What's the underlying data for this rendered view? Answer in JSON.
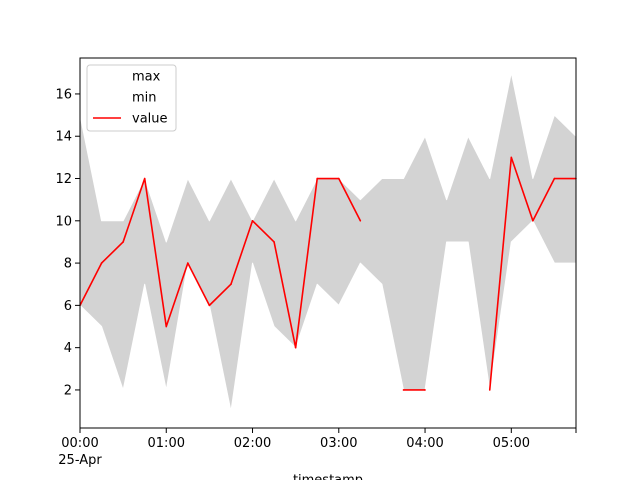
{
  "chart_data": {
    "type": "area",
    "xlabel": "timestamp",
    "ylabel": "",
    "x_ticks": [
      "00:00",
      "01:00",
      "02:00",
      "03:00",
      "04:00",
      "05:00",
      ""
    ],
    "x_tick_sublabel": "25-Apr",
    "y_ticks": [
      "2",
      "4",
      "6",
      "8",
      "10",
      "12",
      "14",
      "16"
    ],
    "ylim": [
      0.2,
      17.7
    ],
    "xlim": [
      "00:00",
      "05:45"
    ],
    "grid": false,
    "legend_position": "top-left",
    "x": [
      "00:00",
      "00:15",
      "00:30",
      "00:45",
      "01:00",
      "01:15",
      "01:30",
      "01:45",
      "02:00",
      "02:15",
      "02:30",
      "02:45",
      "03:00",
      "03:15",
      "03:30",
      "03:45",
      "04:00",
      "04:15",
      "04:30",
      "04:45",
      "05:00",
      "05:15",
      "05:30",
      "05:45"
    ],
    "series": [
      {
        "name": "max",
        "color": "#ffffff",
        "values": [
          15,
          10,
          10,
          12,
          9,
          12,
          10,
          12,
          10,
          12,
          10,
          12,
          12,
          11,
          12,
          12,
          14,
          11,
          14,
          12,
          17,
          12,
          15,
          14
        ]
      },
      {
        "name": "min",
        "color": "#ffffff",
        "values": [
          6,
          5,
          2,
          7,
          2,
          8,
          6,
          1,
          8,
          5,
          4,
          7,
          6,
          8,
          7,
          2,
          2,
          9,
          9,
          2,
          9,
          10,
          8,
          8
        ]
      },
      {
        "name": "value",
        "color": "#ff0000",
        "values": [
          6,
          8,
          9,
          12,
          5,
          8,
          6,
          7,
          10,
          9,
          4,
          12,
          12,
          10,
          null,
          2,
          2,
          null,
          null,
          2,
          13,
          10,
          12,
          12
        ]
      }
    ],
    "band_fill": "#d3d3d3"
  }
}
